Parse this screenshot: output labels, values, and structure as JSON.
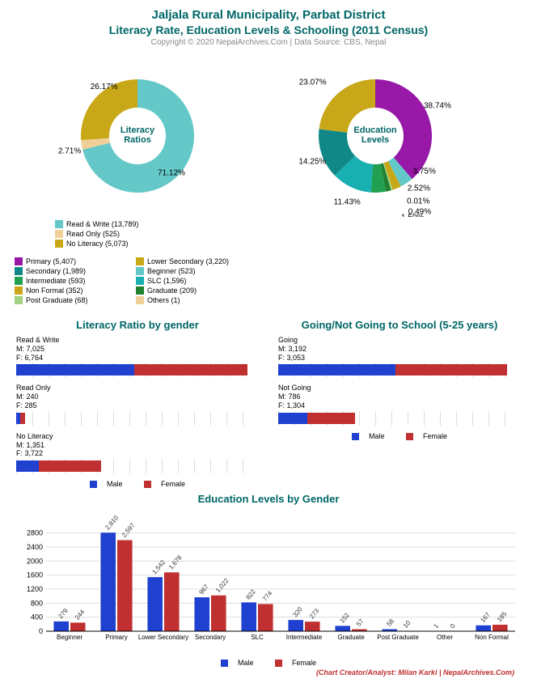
{
  "header": {
    "title_main": "Jaljala Rural Municipality, Parbat District",
    "title_sub": "Literacy Rate, Education Levels & Schooling (2011 Census)",
    "copyright": "Copyright © 2020 NepalArchives.Com | Data Source: CBS, Nepal"
  },
  "colors": {
    "title": "#006666",
    "male": "#2040d0",
    "female": "#c03030",
    "grid": "#dddddd"
  },
  "donut_literacy": {
    "center_label": "Literacy\nRatios",
    "slices": [
      {
        "label": "Read & Write (13,789)",
        "pct": 71.12,
        "color": "#65c8c8",
        "show": "71.12%"
      },
      {
        "label": "Read Only (525)",
        "pct": 2.71,
        "color": "#f0d098",
        "show": "2.71%"
      },
      {
        "label": "No Literacy (5,073)",
        "pct": 26.17,
        "color": "#c8a818",
        "show": "26.17%"
      }
    ]
  },
  "donut_edu": {
    "center_label": "Education\nLevels",
    "slices": [
      {
        "label": "Primary (5,407)",
        "pct": 38.74,
        "color": "#9818a8",
        "show": "38.74%"
      },
      {
        "label": "Beginner (523)",
        "pct": 3.75,
        "color": "#65c8c8",
        "show": "3.75%"
      },
      {
        "label": "Non Formal (352)",
        "pct": 2.52,
        "color": "#c8a818",
        "show": "2.52%"
      },
      {
        "label": "Others (1)",
        "pct": 0.01,
        "color": "#f0d098",
        "show": "0.01%"
      },
      {
        "label": "Post Graduate (68)",
        "pct": 0.49,
        "color": "#a0d080",
        "show": "0.49%"
      },
      {
        "label": "Graduate (209)",
        "pct": 1.5,
        "color": "#208030",
        "show": "1.50%"
      },
      {
        "label": "Intermediate (593)",
        "pct": 4.25,
        "color": "#20a050",
        "show": "4.25%"
      },
      {
        "label": "SLC (1,596)",
        "pct": 11.43,
        "color": "#18b0b0",
        "show": "11.43%"
      },
      {
        "label": "Secondary (1,989)",
        "pct": 14.25,
        "color": "#108888",
        "show": "14.25%"
      },
      {
        "label": "Lower Secondary (3,220)",
        "pct": 23.07,
        "color": "#c8a818",
        "show": "23.07%"
      }
    ]
  },
  "legend_literacy": [
    {
      "label": "Read & Write (13,789)",
      "color": "#65c8c8"
    },
    {
      "label": "Read Only (525)",
      "color": "#f0d098"
    },
    {
      "label": "No Literacy (5,073)",
      "color": "#c8a818"
    }
  ],
  "legend_edu": [
    {
      "label": "Primary (5,407)",
      "color": "#9818a8"
    },
    {
      "label": "Lower Secondary (3,220)",
      "color": "#c8a818"
    },
    {
      "label": "Secondary (1,989)",
      "color": "#108888"
    },
    {
      "label": "Beginner (523)",
      "color": "#65c8c8"
    },
    {
      "label": "Intermediate (593)",
      "color": "#20a050"
    },
    {
      "label": "SLC (1,596)",
      "color": "#18b0b0"
    },
    {
      "label": "Non Formal (352)",
      "color": "#c8a818"
    },
    {
      "label": "Graduate (209)",
      "color": "#208030"
    },
    {
      "label": "Post Graduate (68)",
      "color": "#a0d080"
    },
    {
      "label": "Others (1)",
      "color": "#f0d098"
    }
  ],
  "hbar_literacy": {
    "title": "Literacy Ratio by gender",
    "max": 14000,
    "rows": [
      {
        "name": "Read & Write",
        "m": 7025,
        "f": 6764,
        "m_txt": "M: 7,025",
        "f_txt": "F: 6,764"
      },
      {
        "name": "Read Only",
        "m": 240,
        "f": 285,
        "m_txt": "M: 240",
        "f_txt": "F: 285"
      },
      {
        "name": "No Literacy",
        "m": 1351,
        "f": 3722,
        "m_txt": "M: 1,351",
        "f_txt": "F: 3,722"
      }
    ]
  },
  "hbar_school": {
    "title": "Going/Not Going to School (5-25 years)",
    "max": 6400,
    "rows": [
      {
        "name": "Going",
        "m": 3192,
        "f": 3053,
        "m_txt": "M: 3,192",
        "f_txt": "F: 3,053"
      },
      {
        "name": "Not Going",
        "m": 786,
        "f": 1304,
        "m_txt": "M: 786",
        "f_txt": "F: 1,304"
      }
    ]
  },
  "vbar": {
    "title": "Education Levels by Gender",
    "ymax": 3000,
    "yticks": [
      0,
      400,
      800,
      1200,
      1600,
      2000,
      2400,
      2800
    ],
    "cats": [
      {
        "label": "Beginner",
        "m": 279,
        "f": 244,
        "m_txt": "279",
        "f_txt": "244"
      },
      {
        "label": "Primary",
        "m": 2810,
        "f": 2597,
        "m_txt": "2,810",
        "f_txt": "2,597"
      },
      {
        "label": "Lower Secondary",
        "m": 1542,
        "f": 1678,
        "m_txt": "1,542",
        "f_txt": "1,678"
      },
      {
        "label": "Secondary",
        "m": 967,
        "f": 1022,
        "m_txt": "967",
        "f_txt": "1,022"
      },
      {
        "label": "SLC",
        "m": 822,
        "f": 774,
        "m_txt": "822",
        "f_txt": "774"
      },
      {
        "label": "Intermediate",
        "m": 320,
        "f": 273,
        "m_txt": "320",
        "f_txt": "273"
      },
      {
        "label": "Graduate",
        "m": 152,
        "f": 57,
        "m_txt": "152",
        "f_txt": "57"
      },
      {
        "label": "Post Graduate",
        "m": 58,
        "f": 10,
        "m_txt": "58",
        "f_txt": "10"
      },
      {
        "label": "Other",
        "m": 1,
        "f": 0,
        "m_txt": "1",
        "f_txt": "0"
      },
      {
        "label": "Non Formal",
        "m": 167,
        "f": 185,
        "m_txt": "167",
        "f_txt": "185"
      }
    ]
  },
  "legend_mf": {
    "male": "Male",
    "female": "Female"
  },
  "credit": "(Chart Creator/Analyst: Milan Karki | NepalArchives.Com)"
}
